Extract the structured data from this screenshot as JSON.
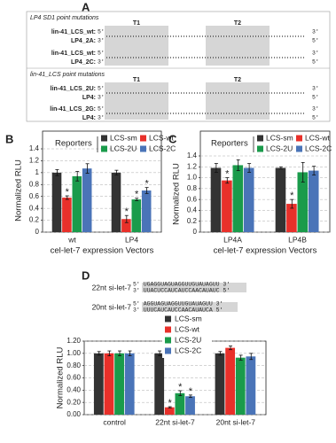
{
  "panel_labels": [
    "A",
    "B",
    "C",
    "D"
  ],
  "panel_a": {
    "targets": [
      "T1",
      "T2"
    ],
    "ends": [
      "5'",
      "3'"
    ],
    "sections": [
      {
        "title": "LP4 SD1 point mutations",
        "rows": [
          "lin-41_LCS_wt:",
          "LP4_2A:",
          "lin-41_LCS_wt:",
          "LP4_2C:"
        ]
      },
      {
        "title": "lin-41_LCS point mutations",
        "rows": [
          "lin-41_LCS_2U:",
          "LP4:",
          "lin-41_LCS_2G:",
          "LP4:"
        ]
      }
    ]
  },
  "panel_d_duplexes": [
    {
      "name": "22nt si-let-7",
      "top": "5' UGAGGUAGUAGGUUGUAUAGUU 3'",
      "bottom": "3' UUACUCCAUCAUCCAACAUAUC 5'"
    },
    {
      "name": "20nt si-let-7",
      "top": "5' AGGUAGUAGGUUGUAUAGUU 3'",
      "bottom": "3' UUUCAUCAUCCAACAUAUCA 5'"
    }
  ],
  "chart_data": [
    {
      "type": "bar",
      "legend_title": "Reporters",
      "legend_layout": "grid",
      "ylabel": "Normalized RLU",
      "xlabel": "cel-let-7 expression Vectors",
      "categories": [
        "wt",
        "LP4"
      ],
      "ylim": [
        0,
        1.4
      ],
      "yticks": [
        0,
        0.2,
        0.4,
        0.6,
        0.8,
        1,
        1.2,
        1.4
      ],
      "grid": true,
      "series": [
        {
          "name": "LCS-sm",
          "color": "#333333",
          "values": [
            1.0,
            1.0
          ],
          "errors": [
            0.05,
            0.04
          ],
          "markers": [
            null,
            null
          ]
        },
        {
          "name": "LCS-wt",
          "color": "#e8302a",
          "values": [
            0.58,
            0.22
          ],
          "errors": [
            0.03,
            0.06
          ],
          "markers": [
            "*",
            "*"
          ]
        },
        {
          "name": "LCS-2U",
          "color": "#1a9b4b",
          "values": [
            0.94,
            0.55
          ],
          "errors": [
            0.08,
            0.02
          ],
          "markers": [
            null,
            "*"
          ]
        },
        {
          "name": "LCS-2C",
          "color": "#4a74b8",
          "values": [
            1.07,
            0.7
          ],
          "errors": [
            0.08,
            0.05
          ],
          "markers": [
            null,
            "*"
          ]
        }
      ]
    },
    {
      "type": "bar",
      "legend_title": "Reporters",
      "legend_layout": "grid",
      "ylabel": "Normalized RLU",
      "xlabel": "cel-let-7 expression Vectors",
      "categories": [
        "LP4A",
        "LP4B"
      ],
      "ylim": [
        0,
        1.4
      ],
      "yticks": [
        0,
        0.2,
        0.4,
        0.6,
        0.8,
        {
          "value": 1,
          "label": "1.0"
        },
        1.2,
        1.4
      ],
      "grid": true,
      "series": [
        {
          "name": "LCS-sm",
          "color": "#333333",
          "values": [
            1.18,
            1.18
          ],
          "errors": [
            0.08,
            0.02
          ],
          "markers": [
            null,
            null
          ]
        },
        {
          "name": "LCS-wt",
          "color": "#e8302a",
          "values": [
            0.95,
            0.52
          ],
          "errors": [
            0.05,
            0.08
          ],
          "markers": [
            "*",
            "*"
          ]
        },
        {
          "name": "LCS-2U",
          "color": "#1a9b4b",
          "values": [
            1.23,
            1.1
          ],
          "errors": [
            0.1,
            0.18
          ],
          "markers": [
            null,
            null
          ]
        },
        {
          "name": "LCS-2C",
          "color": "#4a74b8",
          "values": [
            1.18,
            1.13
          ],
          "errors": [
            0.08,
            0.08
          ],
          "markers": [
            null,
            null
          ]
        }
      ]
    },
    {
      "type": "bar",
      "legend_layout": "column",
      "ylabel": "Normalized RLU",
      "categories": [
        "control",
        "22nt si-let-7",
        "20nt si-let-7"
      ],
      "ylim": [
        0,
        1.2
      ],
      "yticks": [
        {
          "value": 0,
          "label": "0.00"
        },
        {
          "value": 0.2,
          "label": "0.20"
        },
        {
          "value": 0.4,
          "label": "0.40"
        },
        {
          "value": 0.6,
          "label": "0.60"
        },
        {
          "value": 0.8,
          "label": "0.80"
        },
        {
          "value": 1,
          "label": "1.00"
        },
        {
          "value": 1.2,
          "label": "1.20"
        }
      ],
      "grid": true,
      "series": [
        {
          "name": "LCS-sm",
          "color": "#333333",
          "values": [
            1.0,
            1.0,
            1.0
          ],
          "errors": [
            0.03,
            0.04,
            0.03
          ],
          "markers": [
            null,
            null,
            null
          ]
        },
        {
          "name": "LCS-wt",
          "color": "#e8302a",
          "values": [
            1.0,
            0.12,
            1.09
          ],
          "errors": [
            0.04,
            0.01,
            0.03
          ],
          "markers": [
            null,
            "*",
            null
          ]
        },
        {
          "name": "LCS-2U",
          "color": "#1a9b4b",
          "values": [
            1.0,
            0.35,
            0.93
          ],
          "errors": [
            0.04,
            0.04,
            0.04
          ],
          "markers": [
            null,
            "*",
            null
          ]
        },
        {
          "name": "LCS-2C",
          "color": "#4a74b8",
          "values": [
            1.0,
            0.3,
            0.95
          ],
          "errors": [
            0.04,
            0.02,
            0.05
          ],
          "markers": [
            null,
            "*",
            null
          ]
        }
      ]
    }
  ]
}
